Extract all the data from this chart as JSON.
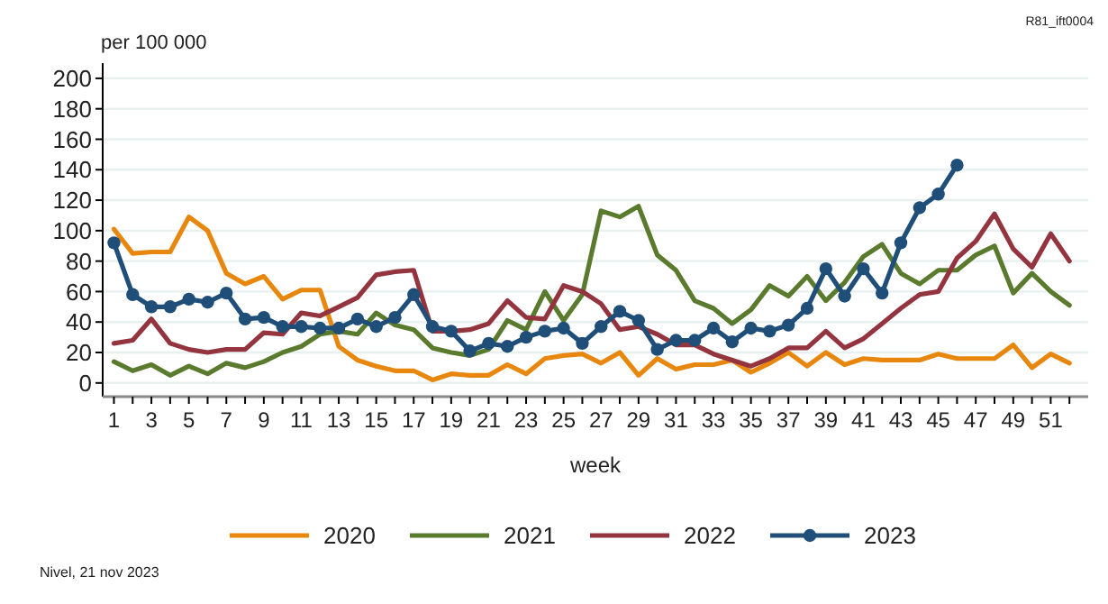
{
  "chart_data": {
    "type": "line",
    "ylabel": "per 100 000",
    "xlabel": "week",
    "annotations": [
      "R81_ift0004",
      "Nivel, 21 nov 2023"
    ],
    "x": [
      1,
      2,
      3,
      4,
      5,
      6,
      7,
      8,
      9,
      10,
      11,
      12,
      13,
      14,
      15,
      16,
      17,
      18,
      19,
      20,
      21,
      22,
      23,
      24,
      25,
      26,
      27,
      28,
      29,
      30,
      31,
      32,
      33,
      34,
      35,
      36,
      37,
      38,
      39,
      40,
      41,
      42,
      43,
      44,
      45,
      46,
      47,
      48,
      49,
      50,
      51,
      52
    ],
    "xlim": [
      0.4,
      53
    ],
    "xticks": [
      1,
      {
        "value": 2,
        "label": null
      },
      3,
      {
        "value": 4,
        "label": null
      },
      5,
      {
        "value": 6,
        "label": null
      },
      7,
      {
        "value": 8,
        "label": null
      },
      9,
      {
        "value": 10,
        "label": null
      },
      11,
      {
        "value": 12,
        "label": null
      },
      13,
      {
        "value": 14,
        "label": null
      },
      15,
      {
        "value": 16,
        "label": null
      },
      17,
      {
        "value": 18,
        "label": null
      },
      19,
      {
        "value": 20,
        "label": null
      },
      21,
      {
        "value": 22,
        "label": null
      },
      23,
      {
        "value": 24,
        "label": null
      },
      25,
      {
        "value": 26,
        "label": null
      },
      27,
      {
        "value": 28,
        "label": null
      },
      29,
      {
        "value": 30,
        "label": null
      },
      31,
      {
        "value": 32,
        "label": null
      },
      33,
      {
        "value": 34,
        "label": null
      },
      35,
      {
        "value": 36,
        "label": null
      },
      37,
      {
        "value": 38,
        "label": null
      },
      39,
      {
        "value": 40,
        "label": null
      },
      41,
      {
        "value": 42,
        "label": null
      },
      43,
      {
        "value": 44,
        "label": null
      },
      45,
      {
        "value": 46,
        "label": null
      },
      47,
      {
        "value": 48,
        "label": null
      },
      49,
      {
        "value": 50,
        "label": null
      },
      51,
      {
        "value": 52,
        "label": null
      }
    ],
    "ylim": [
      -9,
      210
    ],
    "yticks": [
      0,
      20,
      40,
      60,
      80,
      100,
      120,
      140,
      160,
      180,
      200
    ],
    "grid": "y",
    "legend": "bottom",
    "line_style": "solid",
    "series": [
      {
        "name": "2020",
        "color": "#e8870e",
        "values": [
          101,
          85,
          86,
          86,
          109,
          100,
          72,
          65,
          70,
          55,
          61,
          61,
          24,
          15,
          11,
          8,
          8,
          2,
          6,
          5,
          5,
          12,
          6,
          16,
          18,
          19,
          13,
          20,
          5,
          16,
          9,
          12,
          12,
          15,
          7,
          13,
          20,
          11,
          20,
          12,
          16,
          15,
          15,
          15,
          19,
          16,
          16,
          16,
          25,
          10,
          19,
          13
        ]
      },
      {
        "name": "2021",
        "color": "#5a7a2e",
        "values": [
          14,
          8,
          12,
          5,
          11,
          6,
          13,
          10,
          14,
          20,
          24,
          32,
          34,
          32,
          46,
          38,
          35,
          23,
          20,
          18,
          22,
          41,
          35,
          60,
          41,
          58,
          113,
          109,
          116,
          84,
          74,
          54,
          49,
          39,
          48,
          64,
          57,
          70,
          54,
          66,
          83,
          91,
          72,
          65,
          74,
          74,
          84,
          90,
          59,
          72,
          60,
          51
        ]
      },
      {
        "name": "2022",
        "color": "#93343f",
        "values": [
          26,
          28,
          42,
          26,
          22,
          20,
          22,
          22,
          33,
          32,
          46,
          44,
          50,
          56,
          71,
          73,
          74,
          34,
          34,
          35,
          39,
          54,
          43,
          42,
          64,
          60,
          52,
          35,
          37,
          32,
          25,
          25,
          19,
          15,
          11,
          16,
          23,
          23,
          34,
          23,
          29,
          39,
          49,
          58,
          60,
          82,
          93,
          111,
          88,
          76,
          98,
          80
        ]
      },
      {
        "name": "2023",
        "color": "#1f4e79",
        "marker": "circle",
        "values": [
          92,
          58,
          50,
          50,
          55,
          53,
          59,
          42,
          43,
          37,
          37,
          36,
          36,
          42,
          37,
          43,
          58,
          37,
          34,
          21,
          26,
          24,
          30,
          34,
          36,
          26,
          37,
          47,
          41,
          22,
          28,
          28,
          36,
          27,
          36,
          34,
          38,
          49,
          75,
          57,
          75,
          59,
          92,
          115,
          124,
          143,
          null,
          null,
          null,
          null,
          null,
          null
        ]
      }
    ]
  }
}
